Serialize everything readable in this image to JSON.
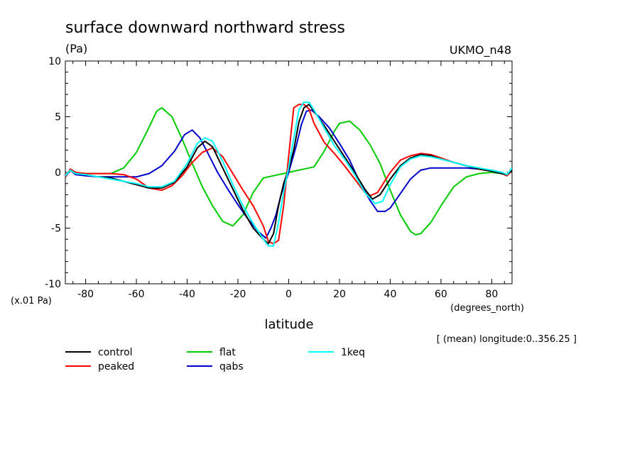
{
  "chart_data": {
    "type": "line",
    "title": "surface downward northward stress",
    "units": "(Pa)",
    "model": "UKMO_n48",
    "scale_note": "(x.01 Pa)",
    "xlabel": "latitude",
    "xunits": "(degrees_north)",
    "subset": "[ (mean) longitude:0..356.25 ]",
    "xlim": [
      -88,
      88
    ],
    "ylim": [
      -10,
      10
    ],
    "x_ticks": [
      -80,
      -60,
      -40,
      -20,
      0,
      20,
      40,
      60,
      80
    ],
    "y_ticks": [
      10,
      5,
      0,
      -5,
      -10
    ],
    "grid": false,
    "legend_position": "bottom",
    "series": [
      {
        "name": "control",
        "color": "#000000",
        "x": [
          -88,
          -86,
          -84,
          -80,
          -75,
          -70,
          -65,
          -60,
          -55,
          -50,
          -45,
          -40,
          -36,
          -33,
          -30,
          -26,
          -22,
          -18,
          -14,
          -10,
          -8,
          -6,
          -4,
          -2,
          0,
          2,
          4,
          6,
          8,
          10,
          14,
          18,
          22,
          26,
          30,
          33,
          36,
          40,
          44,
          48,
          52,
          56,
          60,
          65,
          70,
          75,
          80,
          84,
          86,
          88
        ],
        "y": [
          -0.3,
          0.2,
          -0.1,
          -0.2,
          -0.4,
          -0.5,
          -0.8,
          -1.1,
          -1.4,
          -1.4,
          -0.9,
          0.5,
          2.2,
          2.8,
          2.3,
          0.4,
          -1.5,
          -3.4,
          -5.0,
          -6.0,
          -6.4,
          -5.5,
          -3.0,
          -1.0,
          0.3,
          2.0,
          4.5,
          5.8,
          6.1,
          5.5,
          4.2,
          2.8,
          1.4,
          0.0,
          -1.5,
          -2.4,
          -2.0,
          -0.6,
          0.6,
          1.3,
          1.6,
          1.5,
          1.2,
          0.9,
          0.6,
          0.3,
          0.1,
          -0.1,
          -0.2,
          0.2
        ]
      },
      {
        "name": "peaked",
        "color": "#ff0000",
        "x": [
          -88,
          -86,
          -84,
          -80,
          -75,
          -70,
          -65,
          -60,
          -55,
          -50,
          -46,
          -42,
          -38,
          -34,
          -30,
          -26,
          -22,
          -18,
          -14,
          -10,
          -8,
          -6,
          -4,
          -2,
          0,
          2,
          4,
          6,
          8,
          10,
          14,
          18,
          22,
          26,
          30,
          32,
          35,
          40,
          44,
          48,
          52,
          56,
          60,
          65,
          70,
          75,
          80,
          84,
          86,
          88
        ],
        "y": [
          -0.4,
          0.3,
          0.0,
          -0.1,
          -0.1,
          -0.1,
          -0.2,
          -0.6,
          -1.4,
          -1.6,
          -1.2,
          -0.3,
          0.9,
          1.8,
          2.2,
          1.4,
          -0.1,
          -1.6,
          -3.0,
          -4.8,
          -6.2,
          -6.4,
          -6.1,
          -3.0,
          1.5,
          5.8,
          6.1,
          6.1,
          5.7,
          4.4,
          2.7,
          1.7,
          0.6,
          -0.6,
          -1.8,
          -2.1,
          -1.8,
          0.0,
          1.1,
          1.5,
          1.7,
          1.6,
          1.3,
          0.9,
          0.6,
          0.3,
          0.1,
          -0.1,
          -0.3,
          0.2
        ]
      },
      {
        "name": "flat",
        "color": "#00cc00",
        "x": [
          -88,
          -86,
          -84,
          -80,
          -75,
          -70,
          -65,
          -60,
          -56,
          -52,
          -50,
          -46,
          -42,
          -38,
          -34,
          -30,
          -26,
          -22,
          -18,
          -14,
          -10,
          -6,
          -2,
          2,
          6,
          10,
          14,
          18,
          20,
          24,
          28,
          32,
          36,
          40,
          44,
          48,
          50,
          52,
          56,
          60,
          65,
          70,
          75,
          80,
          84,
          86,
          88
        ],
        "y": [
          -0.4,
          0.3,
          0.0,
          -0.1,
          -0.1,
          -0.1,
          0.4,
          1.8,
          3.6,
          5.5,
          5.8,
          5.0,
          3.0,
          0.8,
          -1.3,
          -3.0,
          -4.4,
          -4.8,
          -3.8,
          -1.8,
          -0.5,
          -0.3,
          -0.1,
          0.1,
          0.3,
          0.5,
          1.9,
          3.7,
          4.4,
          4.6,
          3.8,
          2.5,
          0.8,
          -1.6,
          -3.8,
          -5.3,
          -5.6,
          -5.5,
          -4.5,
          -3.0,
          -1.3,
          -0.4,
          -0.1,
          0.0,
          -0.1,
          -0.3,
          0.3
        ]
      },
      {
        "name": "qabs",
        "color": "#0000cc",
        "x": [
          -88,
          -86,
          -84,
          -80,
          -75,
          -70,
          -65,
          -60,
          -55,
          -50,
          -45,
          -41,
          -38,
          -35,
          -32,
          -28,
          -24,
          -20,
          -16,
          -12,
          -9,
          -7,
          -5,
          -3,
          0,
          3,
          5,
          7,
          9,
          12,
          16,
          20,
          24,
          28,
          32,
          35,
          38,
          40,
          44,
          48,
          52,
          56,
          60,
          65,
          70,
          75,
          80,
          84,
          86,
          88
        ],
        "y": [
          -0.4,
          0.2,
          -0.2,
          -0.3,
          -0.4,
          -0.4,
          -0.4,
          -0.4,
          -0.1,
          0.6,
          1.9,
          3.4,
          3.8,
          3.1,
          1.8,
          0.0,
          -1.5,
          -2.9,
          -4.2,
          -5.3,
          -5.9,
          -5.0,
          -3.8,
          -2.0,
          0.0,
          2.4,
          4.3,
          5.5,
          5.6,
          5.0,
          4.0,
          2.6,
          1.1,
          -0.9,
          -2.5,
          -3.5,
          -3.5,
          -3.2,
          -1.9,
          -0.6,
          0.2,
          0.4,
          0.4,
          0.4,
          0.4,
          0.3,
          0.2,
          0.0,
          -0.2,
          0.2
        ]
      },
      {
        "name": "1keq",
        "color": "#00ffff",
        "x": [
          -88,
          -86,
          -84,
          -80,
          -75,
          -70,
          -65,
          -60,
          -55,
          -50,
          -45,
          -40,
          -36,
          -33,
          -30,
          -26,
          -22,
          -18,
          -14,
          -10,
          -8,
          -6,
          -4,
          -2,
          0,
          2,
          4,
          6,
          8,
          10,
          14,
          18,
          22,
          26,
          30,
          34,
          37,
          40,
          44,
          48,
          52,
          56,
          60,
          65,
          70,
          75,
          80,
          84,
          86,
          88
        ],
        "y": [
          -0.3,
          0.2,
          -0.1,
          -0.2,
          -0.4,
          -0.6,
          -0.8,
          -1.0,
          -1.3,
          -1.3,
          -0.8,
          0.8,
          2.6,
          3.1,
          2.8,
          1.0,
          -1.1,
          -3.0,
          -4.6,
          -6.0,
          -6.6,
          -6.6,
          -4.5,
          -1.8,
          0.5,
          3.0,
          5.6,
          6.3,
          6.3,
          5.6,
          4.0,
          2.4,
          1.2,
          -0.2,
          -1.8,
          -2.8,
          -2.6,
          -1.1,
          0.5,
          1.2,
          1.5,
          1.4,
          1.2,
          0.9,
          0.6,
          0.4,
          0.2,
          0.0,
          -0.2,
          0.4
        ]
      }
    ]
  }
}
